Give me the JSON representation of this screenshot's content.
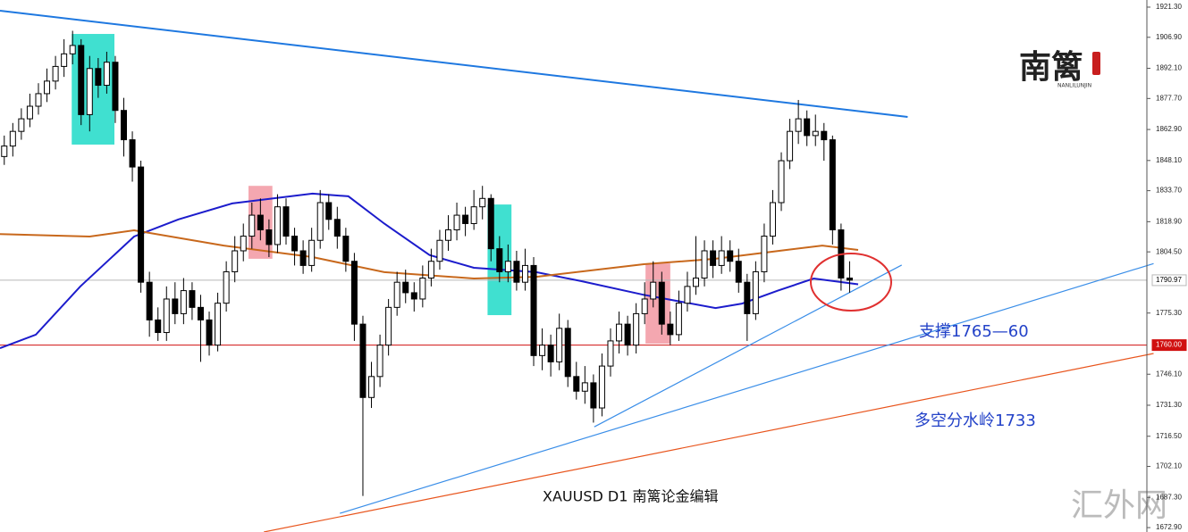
{
  "chart_data": {
    "type": "candlestick",
    "caption": "XAUUSD  D1  南篱论金编辑",
    "logo": "南篱",
    "logo_sub": "NANLILUNJIN",
    "watermark": "汇外网",
    "annotations": [
      {
        "text": "支撑1765—60",
        "color": "#2342c8"
      },
      {
        "text": "多空分水岭1733",
        "color": "#2342c8"
      }
    ],
    "xlim": [
      -0.5,
      133.5
    ],
    "ylim": [
      1670.8,
      1924.7
    ],
    "yticks": [
      {
        "value": 1921.3,
        "label": "1921.30"
      },
      {
        "value": 1906.9,
        "label": "1906.90"
      },
      {
        "value": 1892.1,
        "label": "1892.10"
      },
      {
        "value": 1877.7,
        "label": "1877.70"
      },
      {
        "value": 1862.9,
        "label": "1862.90"
      },
      {
        "value": 1848.1,
        "label": "1848.10"
      },
      {
        "value": 1833.7,
        "label": "1833.70"
      },
      {
        "value": 1818.9,
        "label": "1818.90"
      },
      {
        "value": 1804.5,
        "label": "1804.50"
      },
      {
        "value": 1775.3,
        "label": "1775.30"
      },
      {
        "value": 1746.1,
        "label": "1746.10"
      },
      {
        "value": 1731.3,
        "label": "1731.30"
      },
      {
        "value": 1716.5,
        "label": "1716.50"
      },
      {
        "value": 1702.1,
        "label": "1702.10"
      },
      {
        "value": 1687.3,
        "label": "1687.30"
      },
      {
        "value": 1672.9,
        "label": "1672.90"
      }
    ],
    "price_lines": [
      {
        "value": 1790.97,
        "color": "#b8b8b8",
        "box": "#ffffff",
        "text_color": "#000000"
      },
      {
        "value": 1760,
        "label": "1760.00",
        "color": "#d01010",
        "box": "#d01010",
        "text_color": "#ffffff"
      }
    ],
    "open": [
      1850,
      1855,
      1862,
      1868,
      1874,
      1880,
      1886,
      1893,
      1899,
      1903,
      1870,
      1892,
      1884,
      1895,
      1872,
      1858,
      1845,
      1790,
      1772,
      1766,
      1782,
      1775,
      1786,
      1778,
      1772,
      1760,
      1780,
      1795,
      1805,
      1812,
      1822,
      1815,
      1808,
      1826,
      1812,
      1805,
      1798,
      1810,
      1828,
      1820,
      1812,
      1800,
      1770,
      1735,
      1745,
      1760,
      1778,
      1790,
      1785,
      1782,
      1792,
      1800,
      1810,
      1815,
      1822,
      1818,
      1826,
      1830,
      1806,
      1795,
      1800,
      1790,
      1798,
      1755,
      1760,
      1752,
      1768,
      1745,
      1738,
      1742,
      1730,
      1750,
      1762,
      1770,
      1760,
      1775,
      1782,
      1790,
      1770,
      1765,
      1780,
      1788,
      1792,
      1805,
      1798,
      1805,
      1800,
      1790,
      1775,
      1795,
      1812,
      1828,
      1848,
      1862,
      1868,
      1860,
      1862,
      1858,
      1815,
      1792
    ],
    "high": [
      1860,
      1866,
      1873,
      1880,
      1885,
      1892,
      1898,
      1906,
      1910,
      1906,
      1898,
      1897,
      1900,
      1898,
      1878,
      1862,
      1848,
      1795,
      1778,
      1788,
      1790,
      1792,
      1790,
      1784,
      1776,
      1785,
      1800,
      1812,
      1818,
      1828,
      1830,
      1820,
      1832,
      1830,
      1816,
      1810,
      1816,
      1834,
      1832,
      1826,
      1816,
      1804,
      1774,
      1752,
      1765,
      1782,
      1795,
      1796,
      1790,
      1798,
      1806,
      1815,
      1822,
      1828,
      1826,
      1834,
      1836,
      1832,
      1812,
      1808,
      1805,
      1806,
      1802,
      1768,
      1765,
      1775,
      1772,
      1752,
      1750,
      1746,
      1756,
      1768,
      1776,
      1774,
      1780,
      1790,
      1800,
      1795,
      1776,
      1786,
      1795,
      1812,
      1810,
      1810,
      1812,
      1810,
      1806,
      1794,
      1800,
      1818,
      1834,
      1852,
      1868,
      1877,
      1872,
      1870,
      1866,
      1860,
      1818,
      1800
    ],
    "low": [
      1846,
      1850,
      1858,
      1864,
      1870,
      1876,
      1882,
      1888,
      1894,
      1865,
      1862,
      1878,
      1880,
      1866,
      1850,
      1838,
      1785,
      1764,
      1762,
      1762,
      1770,
      1770,
      1772,
      1752,
      1755,
      1757,
      1776,
      1790,
      1800,
      1806,
      1810,
      1802,
      1804,
      1808,
      1798,
      1794,
      1795,
      1806,
      1815,
      1806,
      1795,
      1762,
      1688,
      1730,
      1740,
      1755,
      1774,
      1780,
      1776,
      1778,
      1788,
      1796,
      1805,
      1810,
      1812,
      1815,
      1820,
      1800,
      1790,
      1790,
      1786,
      1786,
      1750,
      1748,
      1745,
      1748,
      1740,
      1734,
      1732,
      1723,
      1726,
      1745,
      1756,
      1755,
      1756,
      1770,
      1778,
      1765,
      1760,
      1762,
      1776,
      1784,
      1788,
      1792,
      1794,
      1795,
      1785,
      1762,
      1772,
      1790,
      1808,
      1824,
      1844,
      1856,
      1855,
      1855,
      1848,
      1808,
      1786,
      1785
    ],
    "close": [
      1855,
      1862,
      1868,
      1874,
      1880,
      1886,
      1893,
      1899,
      1903,
      1870,
      1892,
      1884,
      1895,
      1872,
      1858,
      1845,
      1790,
      1772,
      1766,
      1782,
      1775,
      1786,
      1778,
      1772,
      1760,
      1780,
      1795,
      1805,
      1812,
      1822,
      1815,
      1808,
      1826,
      1812,
      1805,
      1798,
      1810,
      1828,
      1820,
      1812,
      1800,
      1770,
      1735,
      1745,
      1760,
      1778,
      1790,
      1785,
      1782,
      1792,
      1800,
      1810,
      1815,
      1822,
      1818,
      1826,
      1830,
      1806,
      1795,
      1800,
      1790,
      1798,
      1755,
      1760,
      1752,
      1768,
      1745,
      1738,
      1742,
      1730,
      1750,
      1762,
      1770,
      1760,
      1775,
      1782,
      1790,
      1770,
      1765,
      1780,
      1788,
      1792,
      1805,
      1798,
      1805,
      1800,
      1790,
      1775,
      1795,
      1812,
      1828,
      1848,
      1862,
      1868,
      1860,
      1862,
      1858,
      1815,
      1792,
      1791
    ],
    "zones": [
      {
        "color": "#40e0d0",
        "x": [
          7.9,
          12.9
        ],
        "y": [
          1855.7,
          1908.5
        ]
      },
      {
        "color": "#f4a7b0",
        "x": [
          28.6,
          31.4
        ],
        "y": [
          1801.2,
          1836
        ]
      },
      {
        "color": "#40e0d0",
        "x": [
          56.6,
          59.4
        ],
        "y": [
          1774.3,
          1827.1
        ]
      },
      {
        "color": "#f4a7b0",
        "x": [
          75.1,
          78.0
        ],
        "y": [
          1760.7,
          1799
        ]
      }
    ],
    "moving_averages": [
      {
        "color": "#1c1ccc",
        "x": [
          -0.5,
          3.7,
          8.9,
          15.2,
          20.4,
          26.7,
          36.1,
          40.3,
          44.5,
          49.8,
          55,
          62.3,
          67.6,
          74.9,
          83.3,
          86.4,
          90.6,
          94.8,
          100
        ],
        "values": [
          1758.5,
          1765,
          1788,
          1811.8,
          1820,
          1827.6,
          1832.3,
          1831,
          1818,
          1803,
          1796.9,
          1794.8,
          1790.5,
          1784,
          1777.7,
          1779.8,
          1786,
          1791.8,
          1789
        ]
      },
      {
        "color": "#c8681c",
        "x": [
          -0.5,
          10,
          15.2,
          25.7,
          36.1,
          44.5,
          55,
          62.3,
          74.9,
          83.3,
          91.6,
          95.8,
          100
        ],
        "values": [
          1813,
          1811.8,
          1814.8,
          1807.5,
          1802,
          1794.8,
          1791.8,
          1792.6,
          1798.6,
          1801.2,
          1805.4,
          1807.5,
          1805.4
        ]
      }
    ],
    "trend_lines": [
      {
        "color": "#1e78e0",
        "x": [
          -0.5,
          105.8
        ],
        "y": [
          1919.6,
          1868.9
        ]
      },
      {
        "color": "#3a8ee8",
        "x": [
          69.1,
          105.1
        ],
        "y": [
          1721.0,
          1798.2
        ]
      },
      {
        "color": "#3a8ee8",
        "x": [
          39.3,
          134.6
        ],
        "y": [
          1679.7,
          1798.9
        ]
      },
      {
        "color": "#e8541c",
        "x": [
          30.4,
          134.6
        ],
        "y": [
          1670.8,
          1756.0
        ]
      }
    ]
  }
}
